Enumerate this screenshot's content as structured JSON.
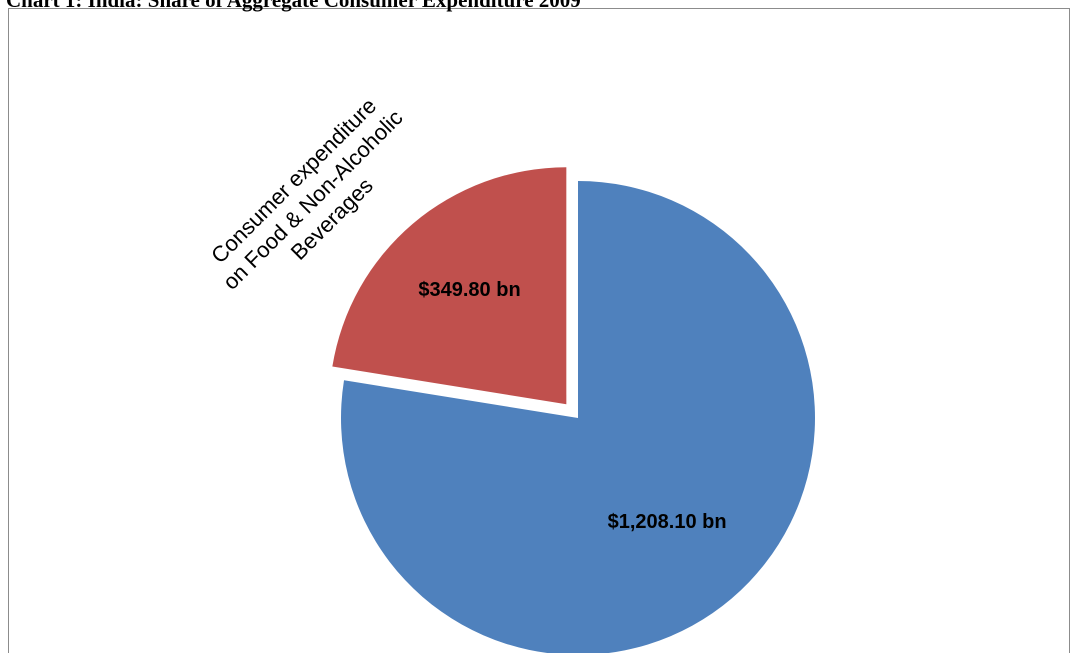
{
  "chart_data": {
    "type": "pie",
    "title": "Chart 1: India: Share of Aggregate Consumer Expenditure 2009",
    "slices": [
      {
        "name": "",
        "value": 1208.1,
        "label": "$1,208.10 bn",
        "color": "#4f81bd",
        "exploded": false
      },
      {
        "name": "Consumer expenditure on Food & Non-Alcoholic Beverages",
        "name_lines": [
          "Consumer expenditure",
          "on Food & Non-Alcoholic",
          "Beverages"
        ],
        "value": 349.8,
        "label": "$349.80 bn",
        "color": "#c0504d",
        "exploded": true
      }
    ],
    "legend": "none",
    "start_angle_deg": 0,
    "direction": "clockwise"
  }
}
